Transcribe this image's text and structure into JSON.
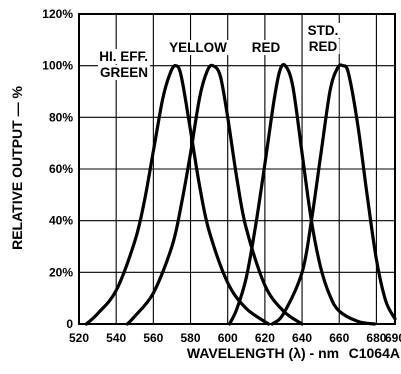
{
  "chart_data": {
    "type": "line",
    "title": "",
    "xlabel": "WAVELENGTH (λ) - nm",
    "ylabel": "RELATIVE OUTPUT — %",
    "figure_code": "C1064A",
    "xlim": [
      520,
      690
    ],
    "ylim": [
      0,
      120
    ],
    "x_ticks": [
      "520",
      "540",
      "560",
      "580",
      "600",
      "620",
      "640",
      "660",
      "680",
      "690"
    ],
    "y_ticks": [
      "0",
      "20%",
      "40%",
      "60%",
      "80%",
      "100%",
      "120%"
    ],
    "grid": true,
    "series": [
      {
        "name": "HI. EFF. GREEN",
        "label_lines": [
          "HI. EFF.",
          "GREEN"
        ],
        "x": [
          524,
          530,
          540,
          550,
          555,
          560,
          565,
          569,
          572,
          575,
          580,
          585,
          590,
          600,
          610,
          622
        ],
        "y": [
          0,
          4,
          13,
          32,
          47,
          67,
          87,
          97,
          100,
          96,
          75,
          53,
          36,
          16,
          6,
          0
        ]
      },
      {
        "name": "YELLOW",
        "label_lines": [
          "YELLOW"
        ],
        "x": [
          546,
          550,
          560,
          570,
          575,
          580,
          585,
          589,
          592,
          596,
          600,
          605,
          610,
          620,
          630,
          640
        ],
        "y": [
          0,
          3,
          12,
          30,
          46,
          66,
          88,
          98,
          100,
          96,
          80,
          56,
          37,
          15,
          5,
          0
        ]
      },
      {
        "name": "RED",
        "label_lines": [
          "RED"
        ],
        "x": [
          601,
          605,
          610,
          615,
          620,
          625,
          628,
          631,
          635,
          640,
          645,
          650,
          655,
          660,
          670,
          679
        ],
        "y": [
          0,
          6,
          18,
          38,
          62,
          87,
          98,
          100,
          92,
          66,
          40,
          22,
          11,
          5,
          1,
          0
        ]
      },
      {
        "name": "STD. RED",
        "label_lines": [
          "STD.",
          "RED"
        ],
        "x": [
          624,
          630,
          640,
          645,
          650,
          655,
          659,
          662,
          665,
          670,
          675,
          680,
          685,
          690
        ],
        "y": [
          0,
          4,
          20,
          40,
          65,
          90,
          99,
          100,
          97,
          77,
          50,
          25,
          9,
          2
        ]
      }
    ]
  }
}
